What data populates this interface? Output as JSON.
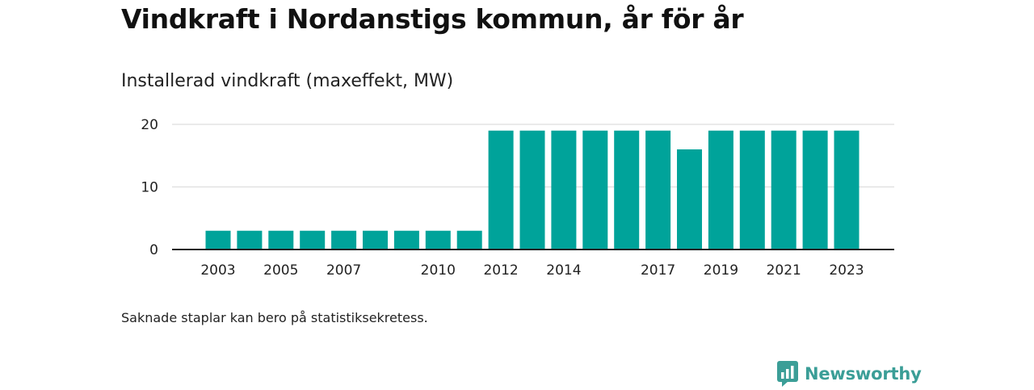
{
  "title": "Vindkraft i Nordanstigs kommun, år för år",
  "subtitle": "Installerad vindkraft (maxeffekt, MW)",
  "footnote": "Saknade staplar kan bero på statistiksekretess.",
  "brand": {
    "name": "Newsworthy",
    "logo_icon": "newsworthy-logo-icon"
  },
  "colors": {
    "bar": "#00a39a",
    "grid": "#dddddd",
    "axis": "#222222",
    "brand": "#3b9e97"
  },
  "chart_data": {
    "type": "bar",
    "categories": [
      "2003",
      "2004",
      "2005",
      "2006",
      "2007",
      "2008",
      "2009",
      "2010",
      "2011",
      "2012",
      "2013",
      "2014",
      "2015",
      "2016",
      "2017",
      "2018",
      "2019",
      "2020",
      "2021",
      "2022",
      "2023"
    ],
    "values": [
      3,
      3,
      3,
      3,
      3,
      3,
      3,
      3,
      3,
      19,
      19,
      19,
      19,
      19,
      19,
      16,
      19,
      19,
      19,
      19,
      19
    ],
    "x_tick_labels": [
      "2003",
      "2005",
      "2007",
      "2010",
      "2012",
      "2014",
      "2017",
      "2019",
      "2021",
      "2023"
    ],
    "y_ticks": [
      0,
      10,
      20
    ],
    "ylim": [
      0,
      20
    ],
    "grid": true,
    "legend": "none",
    "xlabel": "",
    "ylabel": ""
  }
}
